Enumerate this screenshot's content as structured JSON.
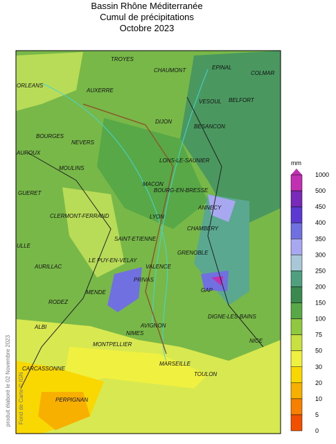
{
  "title": [
    "Bassin Rhône Méditerranée",
    "Cumul de précipitations",
    "Octobre 2023"
  ],
  "side_note": "produit élaboré le 02 Novembre 2023",
  "credit": "Fond de Carte © IGN",
  "cities": [
    "TROYES",
    "CHAUMONT",
    "EPINAL",
    "COLMAR",
    "ORLEANS",
    "AUXERRE",
    "VESOUL",
    "BELFORT",
    "DIJON",
    "BESANCON",
    "BOURGES",
    "NEVERS",
    "AUROUX",
    "MOULINS",
    "LONS-LE-SAUNIER",
    "GUERET",
    "MACON",
    "BOURG-EN-BRESSE",
    "ANNECY",
    "CLERMONT-FERRAND",
    "LYON",
    "CHAMBERY",
    "SAINT-ETIENNE",
    "ULLE",
    "GRENOBLE",
    "LE PUY-EN-VELAY",
    "AURILLAC",
    "VALENCE",
    "PRIVAS",
    "GAP",
    "MENDE",
    "RODEZ",
    "DIGNE-LES-BAINS",
    "AVIGNON",
    "ALBI",
    "NIMES",
    "NICE",
    "MONTPELLIER",
    "MARSEILLE",
    "CARCASSONNE",
    "TOULON",
    "PERPIGNAN"
  ],
  "legend": {
    "unit": "mm",
    "levels": [
      1000,
      500,
      450,
      400,
      350,
      300,
      250,
      200,
      150,
      100,
      75,
      50,
      30,
      20,
      10,
      5,
      0
    ],
    "colors": [
      "#c030b0",
      "#7a2ab8",
      "#5a3ad0",
      "#7070e0",
      "#a8a8f0",
      "#a8c8d8",
      "#50a080",
      "#3a8a50",
      "#58a848",
      "#90c840",
      "#c8e040",
      "#f0f040",
      "#f8d800",
      "#f8b000",
      "#f88000",
      "#f05000"
    ]
  }
}
